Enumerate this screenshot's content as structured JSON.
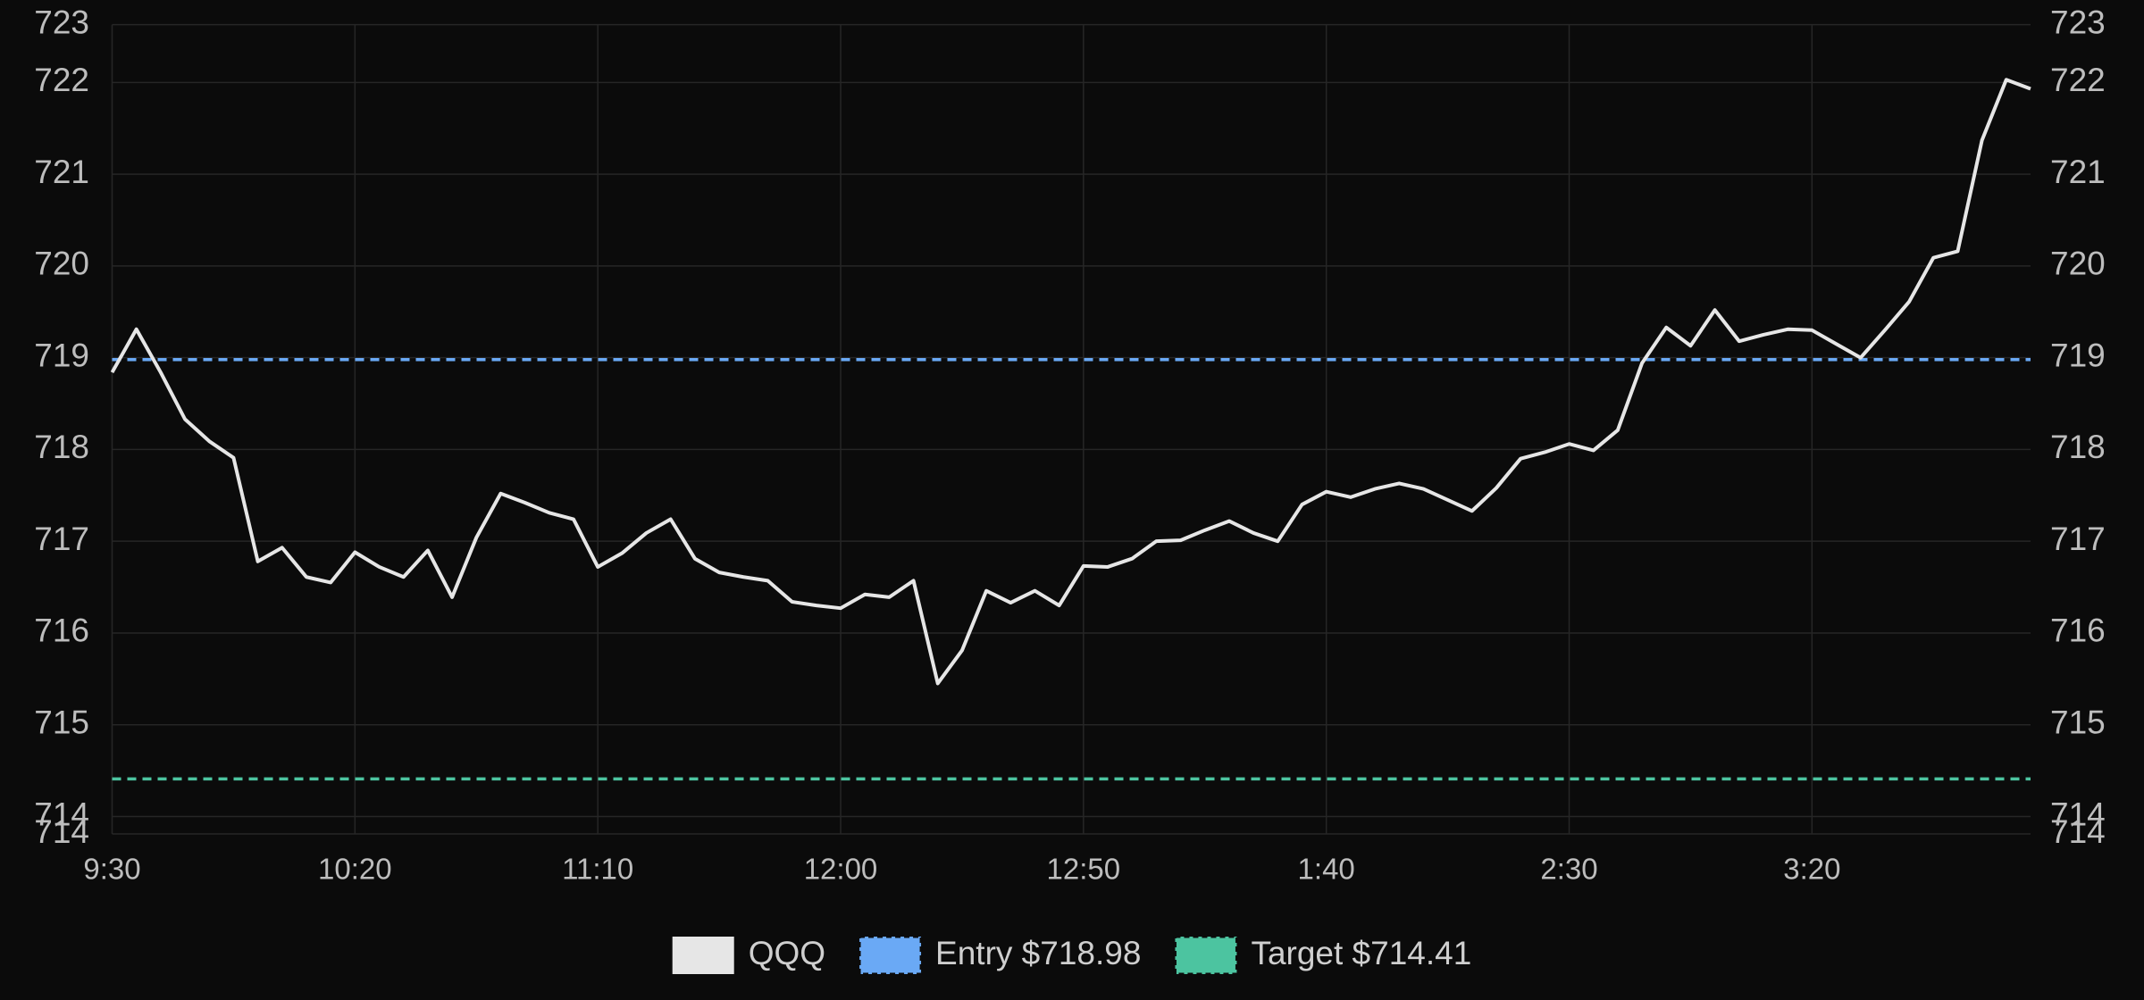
{
  "chart_data": {
    "type": "line",
    "categories": [
      "9:30",
      null,
      null,
      null,
      null,
      null,
      null,
      null,
      null,
      null,
      "10:20",
      null,
      null,
      null,
      null,
      null,
      null,
      null,
      null,
      null,
      "11:10",
      null,
      null,
      null,
      null,
      null,
      null,
      null,
      null,
      null,
      "12:00",
      null,
      null,
      null,
      null,
      null,
      null,
      null,
      null,
      null,
      "12:50",
      null,
      null,
      null,
      null,
      null,
      null,
      null,
      null,
      null,
      "1:40",
      null,
      null,
      null,
      null,
      null,
      null,
      null,
      null,
      null,
      "2:30",
      null,
      null,
      null,
      null,
      null,
      null,
      null,
      null,
      null,
      "3:20",
      null,
      null,
      null,
      null,
      null,
      null,
      null,
      null,
      null
    ],
    "series": [
      {
        "name": "QQQ",
        "color": "#e6e6e6",
        "values": [
          718.84,
          719.31,
          718.84,
          718.33,
          718.09,
          717.91,
          716.78,
          716.93,
          716.61,
          716.55,
          716.88,
          716.72,
          716.61,
          716.9,
          716.39,
          717.04,
          717.52,
          717.42,
          717.31,
          717.24,
          716.72,
          716.87,
          717.09,
          717.24,
          716.81,
          716.66,
          716.61,
          716.57,
          716.34,
          716.3,
          716.27,
          716.42,
          716.39,
          716.57,
          715.45,
          715.81,
          716.46,
          716.33,
          716.46,
          716.3,
          716.73,
          716.72,
          716.81,
          717.0,
          717.01,
          717.12,
          717.22,
          717.09,
          717.0,
          717.4,
          717.54,
          717.48,
          717.57,
          717.63,
          717.57,
          717.45,
          717.33,
          717.58,
          717.9,
          717.97,
          718.06,
          717.99,
          718.21,
          718.94,
          719.33,
          719.13,
          719.52,
          719.18,
          719.25,
          719.31,
          719.3,
          719.15,
          719.0,
          719.3,
          719.61,
          720.09,
          720.16,
          721.37,
          722.03,
          721.93
        ]
      }
    ],
    "reference_lines": [
      {
        "name": "Entry $718.98",
        "value": 718.98,
        "color": "#6aa9f5"
      },
      {
        "name": "Target $714.41",
        "value": 714.41,
        "color": "#4cc4a0"
      }
    ],
    "ylim": [
      713.81,
      722.63
    ],
    "yticks": [
      {
        "value": 713.81,
        "label": "714"
      },
      714,
      715,
      716,
      717,
      718,
      719,
      720,
      721,
      722,
      {
        "value": 722.63,
        "label": "723"
      }
    ],
    "grid": true,
    "legend": "bottom"
  }
}
